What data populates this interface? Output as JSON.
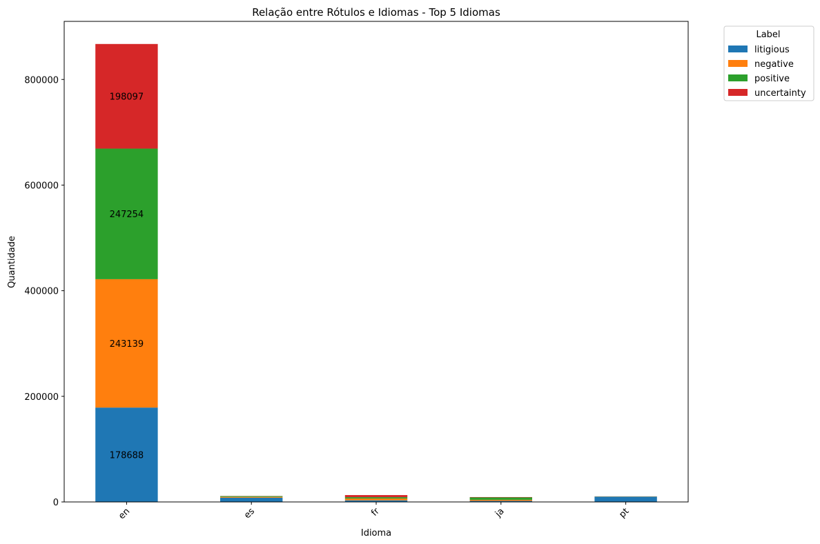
{
  "chart_data": {
    "type": "bar",
    "stacked": true,
    "title": "Relação entre Rótulos e Idiomas - Top 5 Idiomas",
    "xlabel": "Idioma",
    "ylabel": "Quantidade",
    "categories": [
      "en",
      "es",
      "fr",
      "ja",
      "pt"
    ],
    "ylim": [
      0,
      910000
    ],
    "yticks": [
      0,
      200000,
      400000,
      600000,
      800000
    ],
    "ytick_labels": [
      "0",
      "200000",
      "400000",
      "600000",
      "800000"
    ],
    "grid": false,
    "legend": {
      "title": "Label",
      "placement": "outside-top-right"
    },
    "series": [
      {
        "name": "litigious",
        "color": "#1f77b4",
        "values": [
          178688,
          8000,
          3000,
          2000,
          10000
        ]
      },
      {
        "name": "negative",
        "color": "#ff7f0e",
        "values": [
          243139,
          1500,
          3500,
          2000,
          300
        ]
      },
      {
        "name": "positive",
        "color": "#2ca02c",
        "values": [
          247254,
          1500,
          2500,
          4500,
          200
        ]
      },
      {
        "name": "uncertainty",
        "color": "#d62728",
        "values": [
          198097,
          300,
          4000,
          700,
          100
        ]
      }
    ],
    "data_labels": [
      {
        "category": "en",
        "series": "litigious",
        "text": "178688"
      },
      {
        "category": "en",
        "series": "negative",
        "text": "243139"
      },
      {
        "category": "en",
        "series": "positive",
        "text": "247254"
      },
      {
        "category": "en",
        "series": "uncertainty",
        "text": "198097"
      }
    ]
  }
}
